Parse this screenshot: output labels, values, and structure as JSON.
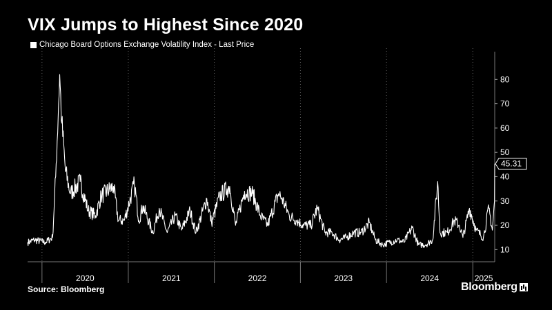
{
  "header": {
    "title": "VIX Jumps to Highest Since 2020",
    "legend_label": "Chicago Board Options Exchange Volatility Index - Last Price"
  },
  "footer": {
    "source": "Source: Bloomberg",
    "brand": "Bloomberg"
  },
  "chart_data": {
    "type": "line",
    "title": "VIX Jumps to Highest Since 2020",
    "series": [
      {
        "name": "Chicago Board Options Exchange Volatility Index - Last Price",
        "color": "#ffffff",
        "x": [
          "2019-11-01",
          "2019-12-01",
          "2020-01-15",
          "2020-02-15",
          "2020-02-28",
          "2020-03-16",
          "2020-03-25",
          "2020-04-10",
          "2020-05-01",
          "2020-06-11",
          "2020-07-15",
          "2020-08-15",
          "2020-09-08",
          "2020-10-30",
          "2020-11-20",
          "2020-12-15",
          "2021-01-27",
          "2021-02-15",
          "2021-03-04",
          "2021-04-15",
          "2021-05-12",
          "2021-06-15",
          "2021-07-19",
          "2021-08-15",
          "2021-09-20",
          "2021-10-15",
          "2021-11-30",
          "2021-12-20",
          "2022-01-24",
          "2022-02-24",
          "2022-03-07",
          "2022-04-01",
          "2022-05-09",
          "2022-06-13",
          "2022-07-15",
          "2022-08-15",
          "2022-09-30",
          "2022-10-15",
          "2022-11-15",
          "2022-12-15",
          "2023-01-15",
          "2023-02-15",
          "2023-03-13",
          "2023-04-15",
          "2023-05-15",
          "2023-06-15",
          "2023-07-15",
          "2023-08-15",
          "2023-09-15",
          "2023-10-20",
          "2023-11-15",
          "2023-12-15",
          "2024-01-15",
          "2024-02-15",
          "2024-03-15",
          "2024-04-19",
          "2024-05-15",
          "2024-06-15",
          "2024-07-15",
          "2024-08-05",
          "2024-08-15",
          "2024-09-15",
          "2024-10-15",
          "2024-11-05",
          "2024-11-20",
          "2024-12-18",
          "2025-01-15",
          "2025-02-15",
          "2025-03-10",
          "2025-03-25",
          "2025-04-03",
          "2025-04-04"
        ],
        "y": [
          13,
          14,
          13,
          15,
          40,
          82,
          62,
          42,
          33,
          38,
          26,
          24,
          32,
          36,
          22,
          22,
          37,
          22,
          28,
          17,
          27,
          17,
          24,
          18,
          26,
          17,
          31,
          21,
          32,
          35,
          36,
          20,
          34,
          33,
          24,
          20,
          33,
          31,
          24,
          22,
          20,
          20,
          27,
          17,
          17,
          14,
          15,
          17,
          17,
          21,
          14,
          12,
          13,
          14,
          13,
          19,
          12,
          12,
          14,
          38,
          17,
          17,
          22,
          20,
          15,
          27,
          18,
          15,
          27,
          18,
          30,
          45.31
        ]
      }
    ],
    "x_tick_labels": [
      "2020",
      "2021",
      "2022",
      "2023",
      "2024",
      "2025"
    ],
    "y_ticks": [
      10,
      20,
      30,
      40,
      50,
      60,
      70,
      80
    ],
    "ylim": [
      5,
      90
    ],
    "last_value_label": "45.31",
    "grid": "vertical dotted",
    "legend_position": "top-left"
  }
}
